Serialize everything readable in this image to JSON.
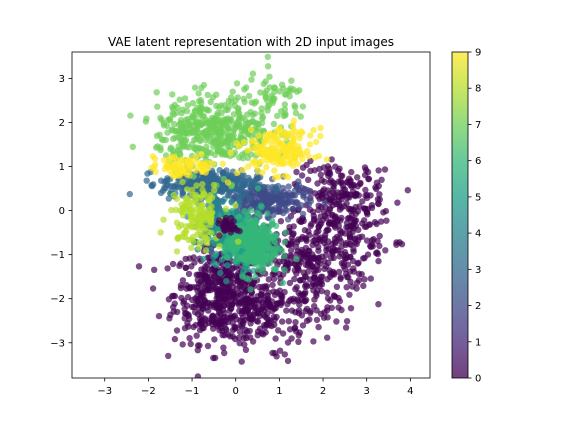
{
  "chart_data": {
    "type": "scatter",
    "title": "VAE latent representation with 2D input images",
    "xlabel": "",
    "ylabel": "",
    "xlim": [
      -3.75,
      4.45
    ],
    "ylim": [
      -3.8,
      3.6
    ],
    "xticks": [
      -3,
      -2,
      -1,
      0,
      1,
      2,
      3,
      4
    ],
    "yticks": [
      -3,
      -2,
      -1,
      0,
      1,
      2,
      3
    ],
    "colorbar": {
      "min": 0,
      "max": 9,
      "ticks": [
        0,
        1,
        2,
        3,
        4,
        5,
        6,
        7,
        8,
        9
      ],
      "colormap": "viridis"
    },
    "grid": false,
    "point_alpha": 0.7,
    "clusters": [
      {
        "label": 0,
        "color": "#440154",
        "center": [
          -0.3,
          -1.9
        ],
        "spread": [
          0.55,
          0.55
        ],
        "count": 520
      },
      {
        "label": 0,
        "color": "#440154",
        "center": [
          1.6,
          -1.2
        ],
        "spread": [
          0.7,
          0.55
        ],
        "count": 300
      },
      {
        "label": 0,
        "color": "#440154",
        "center": [
          2.5,
          -0.2
        ],
        "spread": [
          0.55,
          0.55
        ],
        "count": 200
      },
      {
        "label": 0,
        "color": "#440154",
        "center": [
          2.4,
          0.5
        ],
        "spread": [
          0.5,
          0.3
        ],
        "count": 90
      },
      {
        "label": 0,
        "color": "#440154",
        "center": [
          0.9,
          -2.4
        ],
        "spread": [
          0.6,
          0.35
        ],
        "count": 140
      },
      {
        "label": 2,
        "color": "#3e4a89",
        "center": [
          0.7,
          0.25
        ],
        "spread": [
          0.45,
          0.18
        ],
        "count": 230
      },
      {
        "label": 3,
        "color": "#31688e",
        "center": [
          -0.6,
          0.6
        ],
        "spread": [
          0.55,
          0.15
        ],
        "count": 280
      },
      {
        "label": 4,
        "color": "#26828e",
        "center": [
          -0.3,
          -0.25
        ],
        "spread": [
          0.35,
          0.3
        ],
        "count": 170
      },
      {
        "label": 5,
        "color": "#1f9e89",
        "center": [
          0.1,
          -0.7
        ],
        "spread": [
          0.3,
          0.3
        ],
        "count": 220
      },
      {
        "label": 6,
        "color": "#35b779",
        "center": [
          0.4,
          -0.75
        ],
        "spread": [
          0.3,
          0.35
        ],
        "count": 260
      },
      {
        "label": 7,
        "color": "#6ece58",
        "center": [
          -0.5,
          1.8
        ],
        "spread": [
          0.65,
          0.4
        ],
        "count": 430
      },
      {
        "label": 7,
        "color": "#6ece58",
        "center": [
          0.9,
          2.5
        ],
        "spread": [
          0.4,
          0.3
        ],
        "count": 60
      },
      {
        "label": 8,
        "color": "#b5de2b",
        "center": [
          -0.9,
          -0.1
        ],
        "spread": [
          0.3,
          0.35
        ],
        "count": 150
      },
      {
        "label": 9,
        "color": "#fde725",
        "center": [
          1.0,
          1.35
        ],
        "spread": [
          0.4,
          0.25
        ],
        "count": 170
      },
      {
        "label": 9,
        "color": "#fde725",
        "center": [
          -1.2,
          1.0
        ],
        "spread": [
          0.4,
          0.12
        ],
        "count": 80
      },
      {
        "label": 4,
        "color": "#440154",
        "center": [
          -0.15,
          -0.35
        ],
        "spread": [
          0.1,
          0.08
        ],
        "count": 40
      }
    ]
  }
}
